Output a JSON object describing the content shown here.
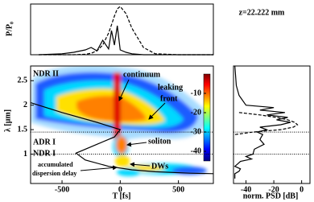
{
  "chart_data": [
    {
      "type": "line",
      "ylabel": "P/P₀",
      "annotation": "z=22.222 mm",
      "xlim": [
        -770,
        800
      ],
      "ylim": [
        0,
        1.05
      ],
      "x": [
        -700,
        -500,
        -400,
        -300,
        -250,
        -200,
        -150,
        -100,
        -75,
        -50,
        -25,
        0,
        50,
        100,
        200,
        300,
        500,
        800
      ],
      "series": [
        {
          "color": "#000000",
          "dash": false,
          "values": [
            0,
            0.02,
            0.05,
            0.1,
            0.15,
            0.08,
            0.3,
            0.12,
            0.5,
            0.2,
            0.6,
            0.1,
            0.05,
            0.02,
            0,
            0,
            0,
            0
          ]
        },
        {
          "color": "#000000",
          "dash": true,
          "values": [
            0,
            0,
            0,
            0.01,
            0.03,
            0.08,
            0.2,
            0.45,
            0.62,
            0.8,
            0.95,
            1,
            0.85,
            0.55,
            0.15,
            0.02,
            0,
            0
          ]
        }
      ]
    },
    {
      "type": "spectrogram",
      "xlabel": "T [fs]",
      "ylabel": "λ [μm]",
      "xlim": [
        -770,
        800
      ],
      "ylim": [
        0.4,
        2.8
      ],
      "xticks": [
        -500,
        0,
        500
      ],
      "yticks": [
        1,
        1.5,
        2,
        2.5
      ],
      "clim": [
        0,
        -45
      ],
      "cticks": [
        -10,
        -20,
        -30,
        -40
      ],
      "hlines": [
        1.45,
        1.0
      ],
      "annotations": [
        "NDR II",
        "ADR I",
        "NDR I",
        "continuum",
        "leaking",
        "front",
        "soliton",
        "DWs",
        "accumulated",
        "dispersion delay"
      ],
      "x": [
        -770,
        -500,
        -200,
        0,
        -50,
        -200,
        -380,
        -300,
        -100,
        100,
        300,
        600,
        800
      ],
      "values": [
        2.05,
        1.85,
        1.65,
        1.5,
        1.35,
        1.2,
        1.02,
        0.88,
        0.75,
        0.68,
        0.64,
        0.61,
        0.6
      ]
    },
    {
      "type": "psd",
      "xlabel": "norm. PSD [dB]",
      "xlim": [
        -49,
        6
      ],
      "ylim": [
        0.4,
        2.8
      ],
      "xticks": [
        -40,
        -20,
        0
      ],
      "lambda": [
        2.8,
        2.4,
        2.2,
        2.0,
        1.95,
        1.9,
        1.85,
        1.8,
        1.75,
        1.7,
        1.65,
        1.6,
        1.55,
        1.5,
        1.45,
        1.4,
        1.3,
        1.2,
        1.1,
        1.0,
        0.95,
        0.9,
        0.85,
        0.8,
        0.75,
        0.7,
        0.65,
        0.6,
        0.5
      ],
      "series": [
        {
          "color": "#000000",
          "dash": false,
          "values": [
            -48,
            -47,
            -45,
            -40,
            -20,
            -30,
            -12,
            -25,
            -10,
            -18,
            -8,
            -15,
            -30,
            -25,
            -32,
            -28,
            -30,
            -27,
            -34,
            -35,
            -40,
            -36,
            -44,
            -46,
            -48,
            -44,
            -45,
            -48,
            -48
          ]
        },
        {
          "color": "#000000",
          "dash": true,
          "values": [
            null,
            null,
            null,
            null,
            null,
            null,
            -45,
            -30,
            -18,
            -10,
            -5,
            -3,
            -6,
            -15,
            -35,
            -48,
            null,
            null,
            null,
            null,
            null,
            null,
            null,
            null,
            null,
            null,
            null,
            null,
            null
          ]
        }
      ]
    }
  ]
}
